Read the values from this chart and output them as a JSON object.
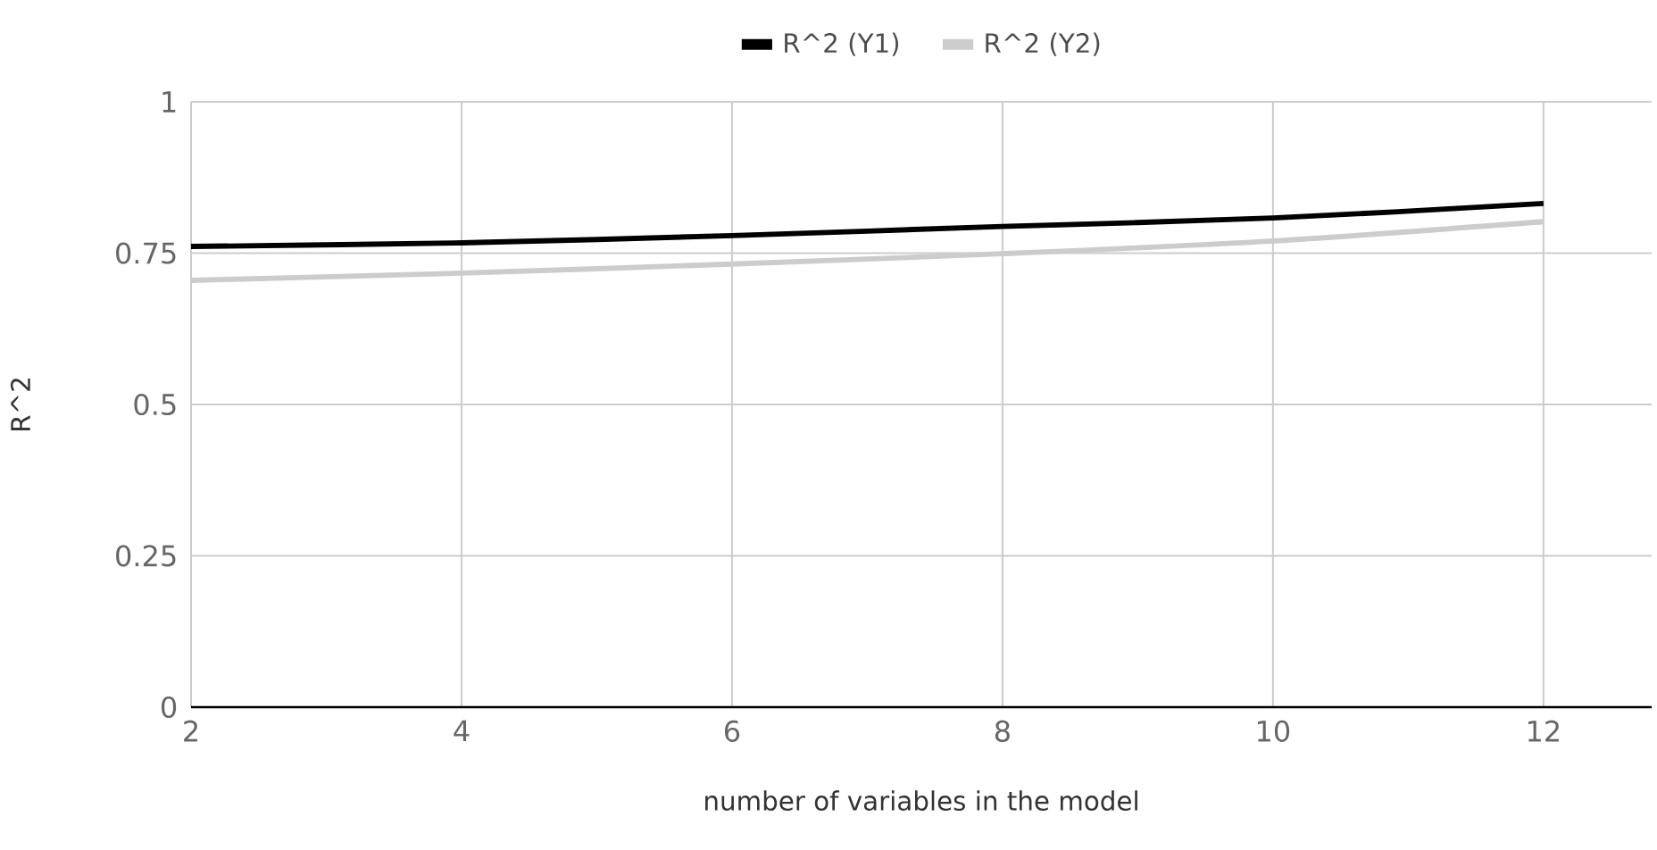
{
  "chart_data": {
    "type": "line",
    "xlabel": "number of variables in the model",
    "ylabel": "R^2",
    "x": [
      2,
      4,
      6,
      8,
      10,
      12
    ],
    "series": [
      {
        "name": "R^2 (Y1)",
        "color": "#000000",
        "values": [
          0.761,
          0.767,
          0.779,
          0.794,
          0.808,
          0.832
        ]
      },
      {
        "name": "R^2 (Y2)",
        "color": "#cccccc",
        "values": [
          0.705,
          0.717,
          0.732,
          0.749,
          0.77,
          0.802
        ]
      }
    ],
    "xlim": [
      2,
      12.8
    ],
    "ylim": [
      0,
      1
    ],
    "xticks": [
      2,
      4,
      6,
      8,
      10,
      12
    ],
    "yticks": [
      0,
      0.25,
      0.5,
      0.75,
      1
    ],
    "grid": true,
    "legend": "top",
    "marker": "none",
    "line_style": "solid"
  }
}
